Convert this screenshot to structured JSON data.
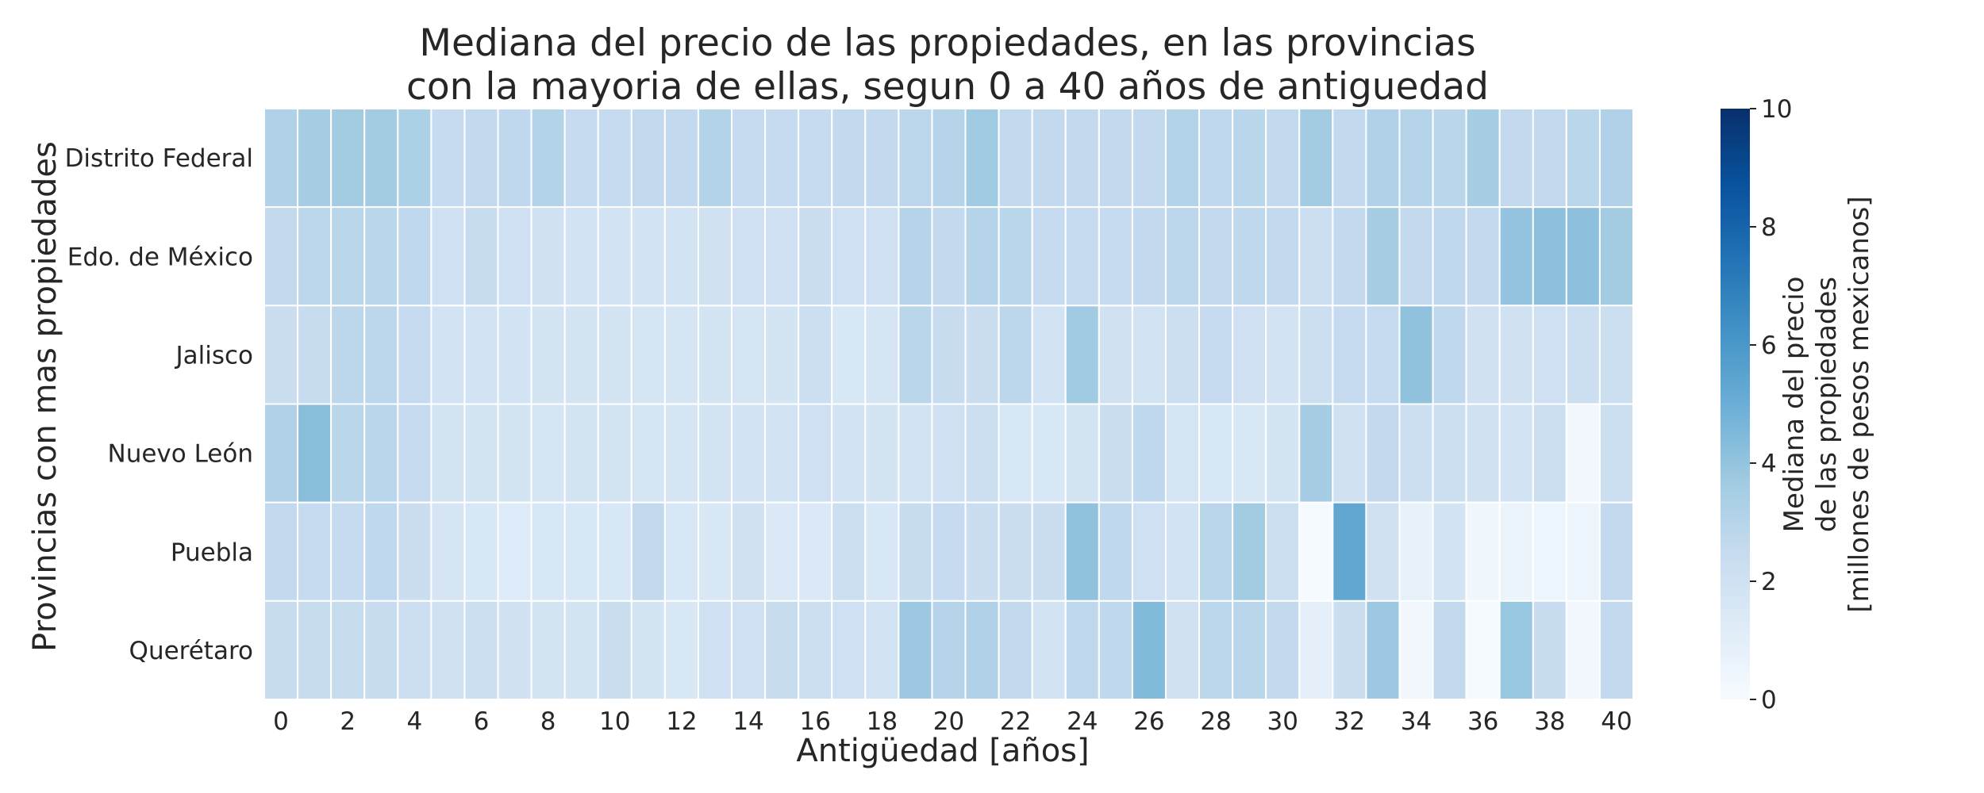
{
  "chart_data": {
    "type": "heatmap",
    "title": [
      "Mediana del precio de las propiedades, en las provincias",
      "con la mayoria de ellas, segun 0 a 40 años de antiguedad"
    ],
    "xlabel": "Antigüedad [años]",
    "ylabel": "Provincias con mas propiedades",
    "x": [
      0,
      1,
      2,
      3,
      4,
      5,
      6,
      7,
      8,
      9,
      10,
      11,
      12,
      13,
      14,
      15,
      16,
      17,
      18,
      19,
      20,
      21,
      22,
      23,
      24,
      25,
      26,
      27,
      28,
      29,
      30,
      31,
      32,
      33,
      34,
      35,
      36,
      37,
      38,
      39,
      40
    ],
    "x_tick_labels": [
      "0",
      "2",
      "4",
      "6",
      "8",
      "10",
      "12",
      "14",
      "16",
      "18",
      "20",
      "22",
      "24",
      "26",
      "28",
      "30",
      "32",
      "34",
      "36",
      "38",
      "40"
    ],
    "y": [
      "Distrito Federal",
      "Edo. de México",
      "Jalisco",
      "Nuevo León",
      "Puebla",
      "Querétaro"
    ],
    "values": [
      [
        3.2,
        3.5,
        3.6,
        3.6,
        3.3,
        2.5,
        2.6,
        2.7,
        3.1,
        2.5,
        2.5,
        2.6,
        2.6,
        3.1,
        2.5,
        2.5,
        2.5,
        2.6,
        2.6,
        2.8,
        3.0,
        3.7,
        2.6,
        2.6,
        2.6,
        2.6,
        2.6,
        3.1,
        2.7,
        2.9,
        2.6,
        3.6,
        2.6,
        3.2,
        3.0,
        2.9,
        3.5,
        2.6,
        2.6,
        2.9,
        3.2
      ],
      [
        2.6,
        2.8,
        2.9,
        2.9,
        2.7,
        2.1,
        2.4,
        2.1,
        2.0,
        1.9,
        1.9,
        1.9,
        1.9,
        2.0,
        2.1,
        2.1,
        2.3,
        2.1,
        2.1,
        3.0,
        2.6,
        3.0,
        2.9,
        2.5,
        2.5,
        2.5,
        2.6,
        2.8,
        2.6,
        2.7,
        2.6,
        2.2,
        2.6,
        3.5,
        2.6,
        2.7,
        2.6,
        4.0,
        4.2,
        4.2,
        3.6
      ],
      [
        2.3,
        2.4,
        2.8,
        2.8,
        2.5,
        1.9,
        1.9,
        1.9,
        1.8,
        1.8,
        1.8,
        1.7,
        1.7,
        1.8,
        1.7,
        1.8,
        2.2,
        1.6,
        1.7,
        2.9,
        2.4,
        2.3,
        2.8,
        1.9,
        3.7,
        2.0,
        1.9,
        2.2,
        2.5,
        2.1,
        1.9,
        2.2,
        2.5,
        2.5,
        4.1,
        2.7,
        2.0,
        2.0,
        2.1,
        2.2,
        2.2
      ],
      [
        3.2,
        4.3,
        2.9,
        2.9,
        2.5,
        1.8,
        1.8,
        1.8,
        1.7,
        1.8,
        1.8,
        1.7,
        1.7,
        1.8,
        1.9,
        1.9,
        2.1,
        1.9,
        1.8,
        1.9,
        2.1,
        2.2,
        1.6,
        1.6,
        1.8,
        2.3,
        2.7,
        1.7,
        1.6,
        1.5,
        1.8,
        3.5,
        2.0,
        2.6,
        2.2,
        2.2,
        2.0,
        1.9,
        2.2,
        0.3,
        2.2
      ],
      [
        2.6,
        2.5,
        2.5,
        2.7,
        2.3,
        1.7,
        1.6,
        1.3,
        1.6,
        1.6,
        1.6,
        2.6,
        1.6,
        1.5,
        2.0,
        1.4,
        1.4,
        2.2,
        1.6,
        2.4,
        2.5,
        2.3,
        2.3,
        2.3,
        4.1,
        2.7,
        2.1,
        1.9,
        2.9,
        3.6,
        2.2,
        0.1,
        5.3,
        2.0,
        0.8,
        1.9,
        0.4,
        0.6,
        0.5,
        0.5,
        2.6
      ],
      [
        2.4,
        2.4,
        2.4,
        2.4,
        2.2,
        2.0,
        2.2,
        2.0,
        1.8,
        1.8,
        2.3,
        1.8,
        1.5,
        2.1,
        2.1,
        2.4,
        2.2,
        2.1,
        1.9,
        3.8,
        3.0,
        3.2,
        2.6,
        1.9,
        2.7,
        2.7,
        4.4,
        2.0,
        2.8,
        2.9,
        2.6,
        0.9,
        2.3,
        3.8,
        0.3,
        2.6,
        0.1,
        3.9,
        2.4,
        0.3,
        2.6
      ]
    ],
    "colorbar": {
      "label": [
        "Mediana del precio",
        "de las propiedades",
        "[millones de pesos mexicanos]"
      ],
      "range": [
        0,
        10
      ],
      "ticks": [
        "0",
        "2",
        "4",
        "6",
        "8",
        "10"
      ],
      "colors": [
        "#f7fbff",
        "#deebf7",
        "#c6dbef",
        "#9ecae1",
        "#6baed6",
        "#4292c6",
        "#2171b5",
        "#08519c",
        "#08306b"
      ]
    },
    "grid": true
  }
}
